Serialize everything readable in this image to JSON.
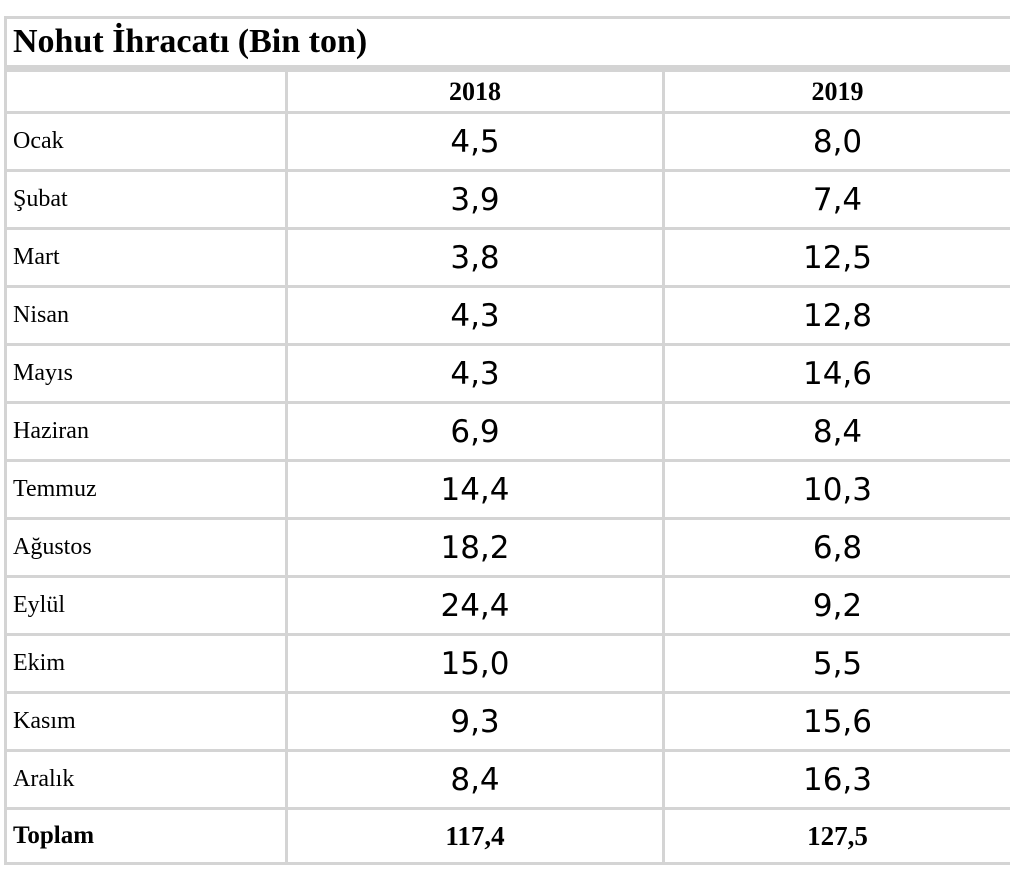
{
  "chart_data": {
    "type": "table",
    "title": "Nohut  İhracatı (Bin ton)",
    "columns": [
      "",
      "2018",
      "2019"
    ],
    "rows": [
      {
        "month": "Ocak",
        "v2018": "4,5",
        "v2019": "8,0"
      },
      {
        "month": "Şubat",
        "v2018": "3,9",
        "v2019": "7,4"
      },
      {
        "month": "Mart",
        "v2018": "3,8",
        "v2019": "12,5"
      },
      {
        "month": "Nisan",
        "v2018": "4,3",
        "v2019": "12,8"
      },
      {
        "month": "Mayıs",
        "v2018": "4,3",
        "v2019": "14,6"
      },
      {
        "month": "Haziran",
        "v2018": "6,9",
        "v2019": "8,4"
      },
      {
        "month": "Temmuz",
        "v2018": "14,4",
        "v2019": "10,3"
      },
      {
        "month": "Ağustos",
        "v2018": "18,2",
        "v2019": "6,8"
      },
      {
        "month": "Eylül",
        "v2018": "24,4",
        "v2019": "9,2"
      },
      {
        "month": "Ekim",
        "v2018": "15,0",
        "v2019": "5,5"
      },
      {
        "month": "Kasım",
        "v2018": "9,3",
        "v2019": "15,6"
      },
      {
        "month": "Aralık",
        "v2018": "8,4",
        "v2019": "16,3"
      }
    ],
    "total": {
      "label": "Toplam",
      "v2018": "117,4",
      "v2019": "127,5"
    }
  },
  "colors": {
    "grid": "#d4d4d4",
    "text": "#000000"
  }
}
